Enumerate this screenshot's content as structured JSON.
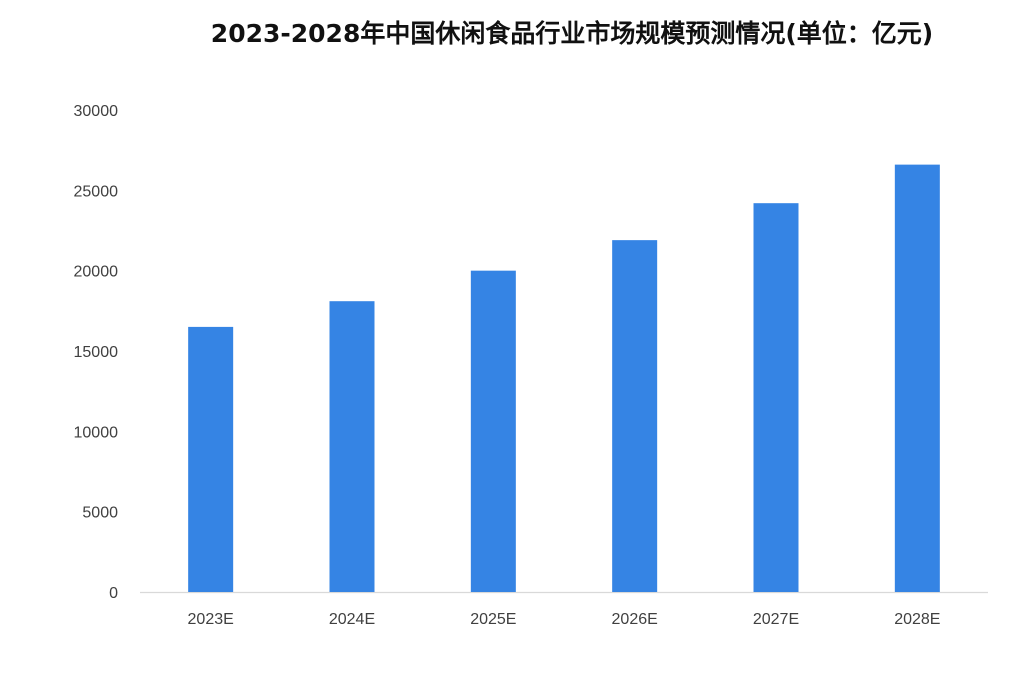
{
  "colors": {
    "bar": "#3584e4",
    "axis": "#d9d9d9",
    "text": "#404040",
    "title": "#111111"
  },
  "chart_data": {
    "type": "bar",
    "title": "2023-2028年中国休闲食品行业市场规模预测情况(单位：亿元)",
    "xlabel": "",
    "ylabel": "",
    "categories": [
      "2023E",
      "2024E",
      "2025E",
      "2026E",
      "2027E",
      "2028E"
    ],
    "values": [
      16500,
      18100,
      20000,
      21900,
      24200,
      26600
    ],
    "ylim": [
      0,
      30000
    ],
    "yticks": [
      "0",
      "5000",
      "10000",
      "15000",
      "20000",
      "25000",
      "30000"
    ],
    "grid": false,
    "legend": "none"
  }
}
